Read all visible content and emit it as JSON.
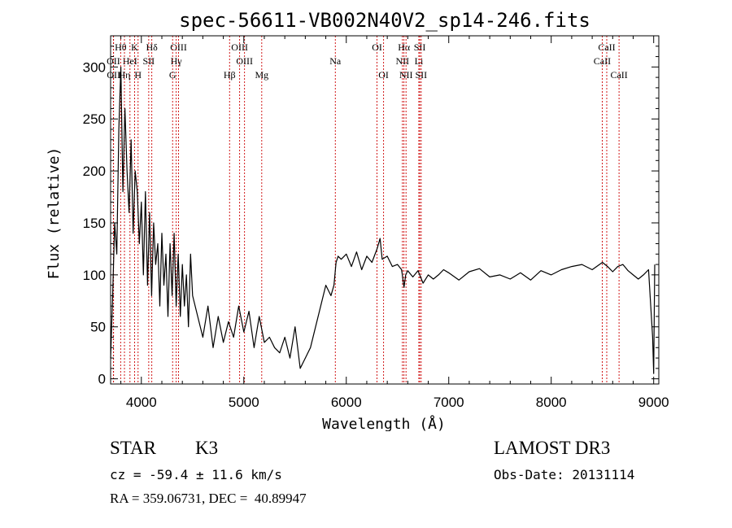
{
  "chart_data": {
    "type": "line",
    "title": "spec-56611-VB002N40V2_sp14-246.fits",
    "xlabel": "Wavelength (Å)",
    "ylabel": "Flux (relative)",
    "xlim": [
      3700,
      9050
    ],
    "ylim": [
      -5,
      330
    ],
    "xticks": [
      4000,
      5000,
      6000,
      7000,
      8000,
      9000
    ],
    "xtick_labels": [
      "4000",
      "5000",
      "6000",
      "7000",
      "8000",
      "9000"
    ],
    "yticks": [
      0,
      50,
      100,
      150,
      200,
      250,
      300
    ],
    "ytick_labels": [
      "0",
      "50",
      "100",
      "150",
      "200",
      "250",
      "300"
    ],
    "grid": false,
    "line_color": "#000000",
    "marker_color": "#cc0000",
    "series": [
      {
        "name": "flux",
        "x": [
          3700,
          3720,
          3740,
          3760,
          3780,
          3800,
          3820,
          3840,
          3860,
          3880,
          3900,
          3920,
          3940,
          3960,
          3980,
          4000,
          4020,
          4040,
          4060,
          4080,
          4100,
          4120,
          4140,
          4160,
          4180,
          4200,
          4220,
          4240,
          4260,
          4280,
          4300,
          4320,
          4340,
          4360,
          4380,
          4400,
          4420,
          4440,
          4460,
          4480,
          4500,
          4550,
          4600,
          4650,
          4700,
          4750,
          4800,
          4850,
          4900,
          4950,
          5000,
          5050,
          5100,
          5150,
          5200,
          5250,
          5300,
          5350,
          5400,
          5450,
          5500,
          5550,
          5600,
          5650,
          5700,
          5750,
          5800,
          5850,
          5880,
          5900,
          5920,
          5950,
          6000,
          6050,
          6100,
          6150,
          6200,
          6250,
          6300,
          6330,
          6350,
          6400,
          6450,
          6500,
          6540,
          6563,
          6580,
          6600,
          6650,
          6700,
          6750,
          6800,
          6850,
          6900,
          6950,
          7000,
          7100,
          7200,
          7300,
          7400,
          7500,
          7600,
          7700,
          7800,
          7900,
          8000,
          8100,
          8200,
          8300,
          8400,
          8500,
          8550,
          8600,
          8650,
          8700,
          8750,
          8800,
          8850,
          8900,
          8950,
          8990,
          9000,
          9010
        ],
        "y": [
          20,
          80,
          150,
          120,
          240,
          300,
          180,
          260,
          200,
          160,
          230,
          140,
          200,
          180,
          130,
          170,
          100,
          180,
          90,
          160,
          80,
          150,
          110,
          130,
          70,
          140,
          90,
          120,
          60,
          130,
          80,
          140,
          70,
          120,
          60,
          110,
          70,
          100,
          50,
          120,
          80,
          60,
          40,
          70,
          30,
          60,
          35,
          55,
          40,
          70,
          45,
          65,
          30,
          60,
          35,
          40,
          30,
          25,
          40,
          20,
          50,
          10,
          20,
          30,
          50,
          70,
          90,
          80,
          90,
          112,
          118,
          115,
          120,
          108,
          122,
          105,
          118,
          112,
          125,
          135,
          115,
          118,
          108,
          110,
          105,
          88,
          100,
          104,
          98,
          104,
          92,
          100,
          96,
          100,
          105,
          102,
          95,
          103,
          106,
          98,
          100,
          96,
          102,
          95,
          104,
          100,
          105,
          108,
          110,
          105,
          112,
          108,
          103,
          108,
          110,
          104,
          100,
          96,
          100,
          105,
          40,
          5,
          110
        ]
      }
    ],
    "line_markers": [
      {
        "label": "Hθ",
        "wl": 3798,
        "row": 1
      },
      {
        "label": "K",
        "wl": 3934,
        "row": 1
      },
      {
        "label": "Hδ",
        "wl": 4102,
        "row": 1
      },
      {
        "label": "OIII",
        "wl": 4363,
        "row": 1
      },
      {
        "label": "OIII",
        "wl": 4959,
        "row": 1
      },
      {
        "label": "OI",
        "wl": 6300,
        "row": 1
      },
      {
        "label": "Hα",
        "wl": 6563,
        "row": 1
      },
      {
        "label": "SII",
        "wl": 6717,
        "row": 1
      },
      {
        "label": "CaII",
        "wl": 8542,
        "row": 1
      },
      {
        "label": "OII",
        "wl": 3727,
        "row": 2
      },
      {
        "label": "HeI",
        "wl": 3889,
        "row": 2
      },
      {
        "label": "SII",
        "wl": 4072,
        "row": 2
      },
      {
        "label": "Hγ",
        "wl": 4340,
        "row": 2
      },
      {
        "label": "OIII",
        "wl": 5007,
        "row": 2
      },
      {
        "label": "Na",
        "wl": 5893,
        "row": 2
      },
      {
        "label": "NII",
        "wl": 6548,
        "row": 2
      },
      {
        "label": "Li",
        "wl": 6708,
        "row": 2
      },
      {
        "label": "CaII",
        "wl": 8498,
        "row": 2
      },
      {
        "label": "OII",
        "wl": 3729,
        "row": 3
      },
      {
        "label": "Hη",
        "wl": 3835,
        "row": 3
      },
      {
        "label": "H",
        "wl": 3968,
        "row": 3
      },
      {
        "label": "G",
        "wl": 4305,
        "row": 3
      },
      {
        "label": "Hβ",
        "wl": 4861,
        "row": 3
      },
      {
        "label": "Mg",
        "wl": 5175,
        "row": 3
      },
      {
        "label": "OI",
        "wl": 6364,
        "row": 3
      },
      {
        "label": "NII",
        "wl": 6583,
        "row": 3
      },
      {
        "label": "SII",
        "wl": 6731,
        "row": 3
      },
      {
        "label": "CaII",
        "wl": 8662,
        "row": 3
      }
    ]
  },
  "info": {
    "class": "STAR",
    "subclass": "K3",
    "survey": "LAMOST DR3",
    "cz": "cz = -59.4 ± 11.6 km/s",
    "obs_date": "Obs-Date: 20131114",
    "coords": "RA = 359.06731, DEC =  40.89947"
  }
}
